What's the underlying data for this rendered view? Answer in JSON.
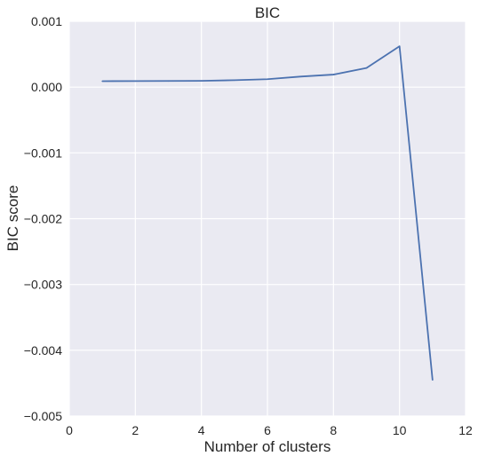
{
  "chart_data": {
    "type": "line",
    "title": "BIC",
    "xlabel": "Number of clusters",
    "ylabel": "BIC score",
    "xlim": [
      0,
      12
    ],
    "ylim": [
      -0.005,
      0.001
    ],
    "x_ticks": [
      0,
      2,
      4,
      6,
      8,
      10,
      12
    ],
    "x_tick_labels": [
      "0",
      "2",
      "4",
      "6",
      "8",
      "10",
      "12"
    ],
    "y_ticks": [
      0.001,
      0.0,
      -0.001,
      -0.002,
      -0.003,
      -0.004,
      -0.005
    ],
    "y_tick_labels": [
      "0.001",
      "0.000",
      "−0.001",
      "−0.002",
      "−0.003",
      "−0.004",
      "−0.005"
    ],
    "grid": true,
    "legend": "none",
    "colors": {
      "background": "#eaeaf2",
      "grid": "#ffffff",
      "line": "#4c72b0",
      "text": "#262626"
    },
    "series": [
      {
        "x": [
          1,
          2,
          3,
          4,
          5,
          6,
          7,
          8,
          9,
          10,
          11
        ],
        "y": [
          9e-05,
          9.2e-05,
          9.3e-05,
          9.5e-05,
          0.000105,
          0.00012,
          0.00016,
          0.00019,
          0.00029,
          0.00062,
          -0.00445
        ]
      }
    ]
  }
}
